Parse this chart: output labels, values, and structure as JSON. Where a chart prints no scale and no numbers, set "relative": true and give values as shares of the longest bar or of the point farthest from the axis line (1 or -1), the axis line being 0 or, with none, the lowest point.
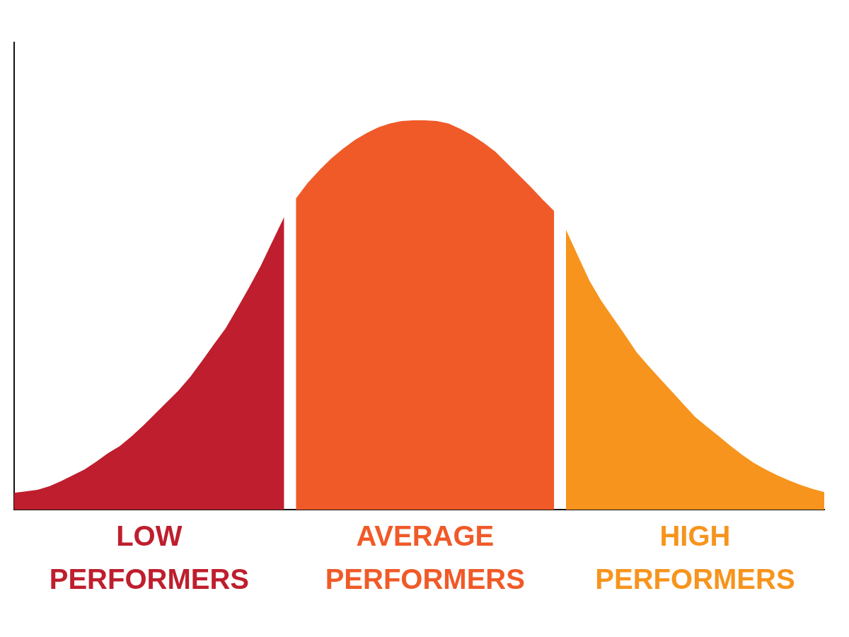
{
  "chart_data": {
    "type": "area",
    "relative": true,
    "legend": false,
    "grid": false,
    "tick_labels": false,
    "categories": [
      null,
      null,
      null,
      null,
      null,
      null,
      null,
      null,
      null,
      null,
      null,
      null,
      null,
      null,
      null,
      null,
      null,
      null,
      null,
      null,
      null,
      null,
      null,
      null,
      null,
      null,
      null,
      null,
      null,
      null,
      null,
      null,
      null,
      null,
      null,
      null,
      null,
      null,
      null,
      null,
      null,
      null,
      null,
      null,
      null,
      null,
      null,
      null,
      null,
      null,
      null,
      null,
      null,
      null,
      null,
      null,
      null,
      null,
      null,
      null,
      null,
      null,
      null,
      null,
      null,
      null,
      null,
      null,
      null,
      null
    ],
    "series": [
      {
        "name": "LOW PERFORMERS",
        "color": "#be1e2d",
        "values": [
          0.043,
          0.047,
          0.051,
          0.06,
          0.073,
          0.088,
          0.103,
          0.123,
          0.145,
          0.163,
          0.188,
          0.216,
          0.246,
          0.276,
          0.306,
          0.341,
          0.382,
          0.424,
          0.465,
          0.517,
          0.57,
          0.626,
          0.689,
          0.752,
          null,
          null,
          null,
          null,
          null,
          null,
          null,
          null,
          null,
          null,
          null,
          null,
          null,
          null,
          null,
          null,
          null,
          null,
          null,
          null,
          null,
          null,
          null,
          null,
          null,
          null,
          null,
          null,
          null,
          null,
          null,
          null,
          null,
          null,
          null,
          null,
          null,
          null,
          null,
          null,
          null,
          null,
          null,
          null,
          null,
          null
        ]
      },
      {
        "name": "AVERAGE PERFORMERS",
        "color": "#f05a28",
        "values": [
          null,
          null,
          null,
          null,
          null,
          null,
          null,
          null,
          null,
          null,
          null,
          null,
          null,
          null,
          null,
          null,
          null,
          null,
          null,
          null,
          null,
          null,
          null,
          null,
          0.799,
          0.839,
          0.872,
          0.902,
          0.927,
          0.949,
          0.967,
          0.982,
          0.992,
          0.998,
          1,
          1,
          0.998,
          0.992,
          0.978,
          0.962,
          0.942,
          0.919,
          0.889,
          0.859,
          0.829,
          0.797,
          0.767,
          null,
          null,
          null,
          null,
          null,
          null,
          null,
          null,
          null,
          null,
          null,
          null,
          null,
          null,
          null,
          null,
          null,
          null,
          null,
          null,
          null,
          null,
          null
        ]
      },
      {
        "name": "HIGH PERFORMERS",
        "color": "#f7941d",
        "values": [
          null,
          null,
          null,
          null,
          null,
          null,
          null,
          null,
          null,
          null,
          null,
          null,
          null,
          null,
          null,
          null,
          null,
          null,
          null,
          null,
          null,
          null,
          null,
          null,
          null,
          null,
          null,
          null,
          null,
          null,
          null,
          null,
          null,
          null,
          null,
          null,
          null,
          null,
          null,
          null,
          null,
          null,
          null,
          null,
          null,
          null,
          null,
          0.719,
          0.653,
          0.588,
          0.537,
          0.493,
          0.45,
          0.405,
          0.37,
          0.337,
          0.304,
          0.271,
          0.238,
          0.213,
          0.189,
          0.164,
          0.141,
          0.12,
          0.103,
          0.088,
          0.075,
          0.063,
          0.053,
          0.045
        ]
      }
    ]
  }
}
